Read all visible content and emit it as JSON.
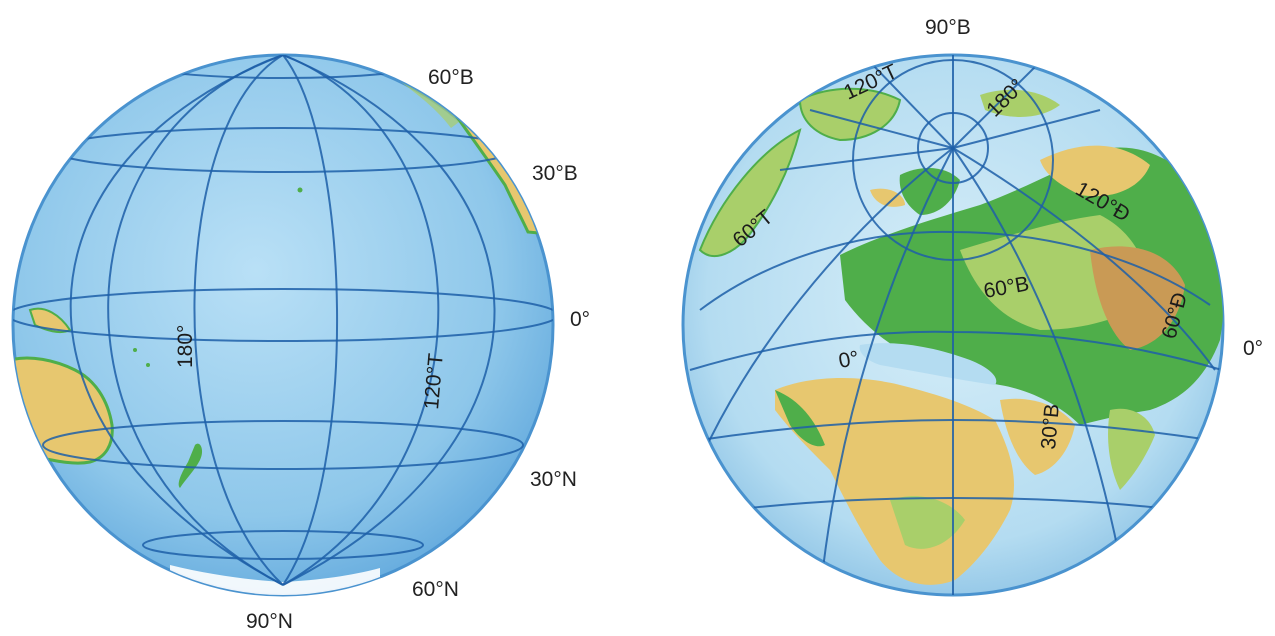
{
  "globes": [
    {
      "name": "pacific-hemisphere",
      "outer_labels": {
        "lat_60_north": "60°B",
        "lat_30_north": "30°B",
        "equator": "0°",
        "lat_30_south": "30°N",
        "lat_60_south": "60°N",
        "south_pole": "90°N"
      },
      "meridian_labels": {
        "meridian_180": "180°",
        "meridian_120_west": "120°T"
      }
    },
    {
      "name": "north-polar-hemisphere",
      "outer_labels": {
        "north_pole": "90°B",
        "equator": "0°"
      },
      "inner_labels": {
        "meridian_120_west": "120°T",
        "meridian_180": "180°",
        "meridian_60_west": "60°T",
        "meridian_120_east": "120°Đ",
        "lat_60": "60°B",
        "meridian_0": "0°",
        "lat_30": "30°B",
        "meridian_60_east": "60°Đ"
      }
    }
  ],
  "colors": {
    "ocean": "#8ec7ea",
    "ocean_edge": "#4a93cf",
    "graticule": "#1d5fa8",
    "lowland": "#4fae4a",
    "plain": "#a9cf6a",
    "highland": "#e7c76f",
    "mountain": "#c99a55",
    "ice": "#ffffff"
  }
}
